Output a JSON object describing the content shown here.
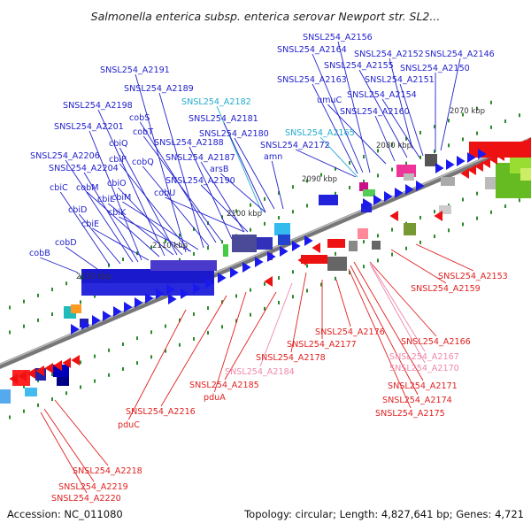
{
  "title": "Salmonella enterica subsp. enterica serovar Newport str. SL2...",
  "footer": {
    "accession": "Accession: NC_011080",
    "summary": "Topology: circular; Length: 4,827,641 bp; Genes: 4,721"
  },
  "colors": {
    "forward_label": "#2222cc",
    "reverse_label": "#e02020",
    "rna_forward_label": "#22aacc",
    "rna_reverse_label": "#ee88aa",
    "backbone": "#888888"
  },
  "scale_labels": [
    "2070 kbp",
    "2080 kbp",
    "2090 kbp",
    "2100 kbp",
    "2110 kbp",
    "2120 kbp"
  ],
  "gene_labels": [
    {
      "id": "SNSL254_A2156",
      "strand": "forward",
      "kind": "cds"
    },
    {
      "id": "SNSL254_A2164",
      "strand": "forward",
      "kind": "cds"
    },
    {
      "id": "SNSL254_A2152",
      "strand": "forward",
      "kind": "cds"
    },
    {
      "id": "SNSL254_A2146",
      "strand": "forward",
      "kind": "cds"
    },
    {
      "id": "SNSL254_A2155",
      "strand": "forward",
      "kind": "cds"
    },
    {
      "id": "SNSL254_A2150",
      "strand": "forward",
      "kind": "cds"
    },
    {
      "id": "SNSL254_A2191",
      "strand": "forward",
      "kind": "cds"
    },
    {
      "id": "SNSL254_A2163",
      "strand": "forward",
      "kind": "cds"
    },
    {
      "id": "SNSL254_A2151",
      "strand": "forward",
      "kind": "cds"
    },
    {
      "id": "SNSL254_A2189",
      "strand": "forward",
      "kind": "cds"
    },
    {
      "id": "SNSL254_A2154",
      "strand": "forward",
      "kind": "cds"
    },
    {
      "id": "umuC",
      "strand": "forward",
      "kind": "cds"
    },
    {
      "id": "SNSL254_A2198",
      "strand": "forward",
      "kind": "cds"
    },
    {
      "id": "SNSL254_A2182",
      "strand": "forward",
      "kind": "rna"
    },
    {
      "id": "SNSL254_A2160",
      "strand": "forward",
      "kind": "cds"
    },
    {
      "id": "cobS",
      "strand": "forward",
      "kind": "cds"
    },
    {
      "id": "SNSL254_A2181",
      "strand": "forward",
      "kind": "cds"
    },
    {
      "id": "SNSL254_A2201",
      "strand": "forward",
      "kind": "cds"
    },
    {
      "id": "cobT",
      "strand": "forward",
      "kind": "cds"
    },
    {
      "id": "SNSL254_A2180",
      "strand": "forward",
      "kind": "cds"
    },
    {
      "id": "SNSL254_A2165",
      "strand": "forward",
      "kind": "rna"
    },
    {
      "id": "cbiQ",
      "strand": "forward",
      "kind": "cds"
    },
    {
      "id": "SNSL254_A2188",
      "strand": "forward",
      "kind": "cds"
    },
    {
      "id": "SNSL254_A2172",
      "strand": "forward",
      "kind": "cds"
    },
    {
      "id": "SNSL254_A2206",
      "strand": "forward",
      "kind": "cds"
    },
    {
      "id": "cbiP",
      "strand": "forward",
      "kind": "cds"
    },
    {
      "id": "SNSL254_A2187",
      "strand": "forward",
      "kind": "cds"
    },
    {
      "id": "amn",
      "strand": "forward",
      "kind": "cds"
    },
    {
      "id": "cobQ",
      "strand": "forward",
      "kind": "cds"
    },
    {
      "id": "arsB",
      "strand": "forward",
      "kind": "cds"
    },
    {
      "id": "SNSL254_A2204",
      "strand": "forward",
      "kind": "cds"
    },
    {
      "id": "cbiO",
      "strand": "forward",
      "kind": "cds"
    },
    {
      "id": "SNSL254_A2190",
      "strand": "forward",
      "kind": "cds"
    },
    {
      "id": "cbiC",
      "strand": "forward",
      "kind": "cds"
    },
    {
      "id": "cobM",
      "strand": "forward",
      "kind": "cds"
    },
    {
      "id": "cbiL",
      "strand": "forward",
      "kind": "cds"
    },
    {
      "id": "cbiM",
      "strand": "forward",
      "kind": "cds"
    },
    {
      "id": "cobU",
      "strand": "forward",
      "kind": "cds"
    },
    {
      "id": "cbiD",
      "strand": "forward",
      "kind": "cds"
    },
    {
      "id": "cbiK",
      "strand": "forward",
      "kind": "cds"
    },
    {
      "id": "cbiE",
      "strand": "forward",
      "kind": "cds"
    },
    {
      "id": "cobD",
      "strand": "forward",
      "kind": "cds"
    },
    {
      "id": "cobB",
      "strand": "forward",
      "kind": "cds"
    },
    {
      "id": "SNSL254_A2153",
      "strand": "reverse",
      "kind": "cds"
    },
    {
      "id": "SNSL254_A2159",
      "strand": "reverse",
      "kind": "cds"
    },
    {
      "id": "SNSL254_A2176",
      "strand": "reverse",
      "kind": "cds"
    },
    {
      "id": "SNSL254_A2166",
      "strand": "reverse",
      "kind": "cds"
    },
    {
      "id": "SNSL254_A2177",
      "strand": "reverse",
      "kind": "cds"
    },
    {
      "id": "SNSL254_A2178",
      "strand": "reverse",
      "kind": "cds"
    },
    {
      "id": "SNSL254_A2167",
      "strand": "reverse",
      "kind": "rna"
    },
    {
      "id": "SNSL254_A2170",
      "strand": "reverse",
      "kind": "rna"
    },
    {
      "id": "SNSL254_A2184",
      "strand": "reverse",
      "kind": "rna"
    },
    {
      "id": "SNSL254_A2171",
      "strand": "reverse",
      "kind": "cds"
    },
    {
      "id": "SNSL254_A2185",
      "strand": "reverse",
      "kind": "cds"
    },
    {
      "id": "pduA",
      "strand": "reverse",
      "kind": "cds"
    },
    {
      "id": "SNSL254_A2174",
      "strand": "reverse",
      "kind": "cds"
    },
    {
      "id": "SNSL254_A2216",
      "strand": "reverse",
      "kind": "cds"
    },
    {
      "id": "SNSL254_A2175",
      "strand": "reverse",
      "kind": "cds"
    },
    {
      "id": "pduC",
      "strand": "reverse",
      "kind": "cds"
    },
    {
      "id": "SNSL254_A2218",
      "strand": "reverse",
      "kind": "cds"
    },
    {
      "id": "SNSL254_A2219",
      "strand": "reverse",
      "kind": "cds"
    },
    {
      "id": "SNSL254_A2220",
      "strand": "reverse",
      "kind": "cds"
    }
  ]
}
